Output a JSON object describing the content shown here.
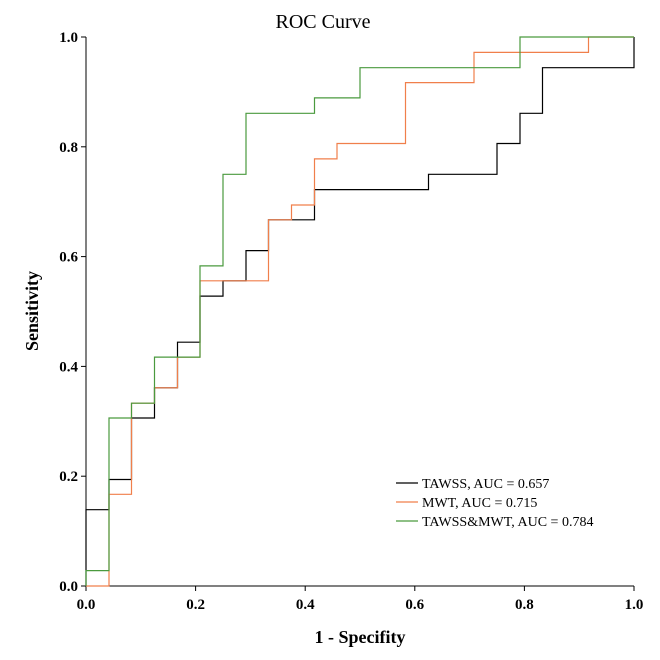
{
  "chart_data": {
    "type": "line",
    "title": "ROC  Curve",
    "xlabel": "1 - Specifity",
    "ylabel": "Sensitivity",
    "xlim": [
      0,
      1
    ],
    "ylim": [
      0,
      1
    ],
    "xticks": [
      "0.0",
      "0.2",
      "0.4",
      "0.6",
      "0.8",
      "1.0"
    ],
    "yticks": [
      "0.0",
      "0.2",
      "0.4",
      "0.6",
      "0.8",
      "1.0"
    ],
    "legend_position": "bottom-right",
    "series": [
      {
        "name": "TAWSS, AUC = 0.657",
        "color": "#000000",
        "x": [
          0,
          0,
          0.042,
          0.042,
          0.083,
          0.083,
          0.125,
          0.125,
          0.167,
          0.167,
          0.208,
          0.208,
          0.25,
          0.25,
          0.292,
          0.292,
          0.333,
          0.333,
          0.417,
          0.417,
          0.625,
          0.625,
          0.75,
          0.75,
          0.792,
          0.792,
          0.833,
          0.833,
          1.0,
          1.0
        ],
        "y": [
          0,
          0.139,
          0.139,
          0.194,
          0.194,
          0.306,
          0.306,
          0.361,
          0.361,
          0.444,
          0.444,
          0.528,
          0.528,
          0.556,
          0.556,
          0.611,
          0.611,
          0.667,
          0.667,
          0.722,
          0.722,
          0.75,
          0.75,
          0.806,
          0.806,
          0.861,
          0.861,
          0.944,
          0.944,
          1.0
        ]
      },
      {
        "name": "MWT, AUC = 0.715",
        "color": "#f07f4b",
        "x": [
          0,
          0.042,
          0.042,
          0.083,
          0.083,
          0.125,
          0.125,
          0.167,
          0.167,
          0.208,
          0.208,
          0.333,
          0.333,
          0.375,
          0.375,
          0.417,
          0.417,
          0.458,
          0.458,
          0.583,
          0.583,
          0.708,
          0.708,
          0.917,
          0.917,
          1.0,
          1.0
        ],
        "y": [
          0,
          0,
          0.167,
          0.167,
          0.333,
          0.333,
          0.361,
          0.361,
          0.417,
          0.417,
          0.556,
          0.556,
          0.667,
          0.667,
          0.694,
          0.694,
          0.778,
          0.778,
          0.806,
          0.806,
          0.917,
          0.917,
          0.972,
          0.972,
          1.0,
          1.0,
          1.0
        ]
      },
      {
        "name": "TAWSS&MWT, AUC = 0.784",
        "color": "#4a9a3e",
        "x": [
          0,
          0,
          0.042,
          0.042,
          0.083,
          0.083,
          0.125,
          0.125,
          0.208,
          0.208,
          0.25,
          0.25,
          0.292,
          0.292,
          0.417,
          0.417,
          0.5,
          0.5,
          0.792,
          0.792,
          1.0,
          1.0
        ],
        "y": [
          0,
          0.028,
          0.028,
          0.306,
          0.306,
          0.333,
          0.333,
          0.417,
          0.417,
          0.583,
          0.583,
          0.75,
          0.75,
          0.861,
          0.861,
          0.889,
          0.889,
          0.944,
          0.944,
          1.0,
          1.0,
          1.0
        ]
      }
    ]
  }
}
